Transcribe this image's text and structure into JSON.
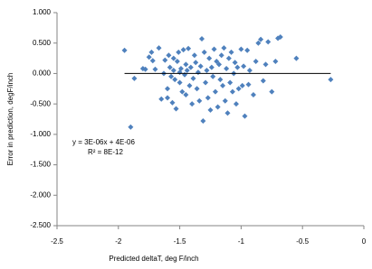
{
  "chart_data": {
    "type": "scatter",
    "x_label": "Predicted deltaT, deg F/inch",
    "y_label": "Error in prediction, degF/inch",
    "color": "#4f81bd",
    "x": [
      -1.95,
      -1.9,
      -1.87,
      -1.8,
      -1.78,
      -1.75,
      -1.73,
      -1.72,
      -1.7,
      -1.67,
      -1.65,
      -1.63,
      -1.62,
      -1.6,
      -1.6,
      -1.59,
      -1.58,
      -1.57,
      -1.56,
      -1.55,
      -1.55,
      -1.54,
      -1.53,
      -1.52,
      -1.51,
      -1.5,
      -1.5,
      -1.49,
      -1.48,
      -1.47,
      -1.46,
      -1.45,
      -1.45,
      -1.44,
      -1.43,
      -1.42,
      -1.41,
      -1.4,
      -1.39,
      -1.38,
      -1.37,
      -1.36,
      -1.35,
      -1.34,
      -1.33,
      -1.32,
      -1.31,
      -1.3,
      -1.29,
      -1.28,
      -1.27,
      -1.26,
      -1.25,
      -1.24,
      -1.23,
      -1.22,
      -1.21,
      -1.2,
      -1.19,
      -1.18,
      -1.17,
      -1.16,
      -1.15,
      -1.14,
      -1.13,
      -1.12,
      -1.11,
      -1.1,
      -1.09,
      -1.08,
      -1.07,
      -1.06,
      -1.05,
      -1.04,
      -1.03,
      -1.02,
      -1.0,
      -0.99,
      -0.98,
      -0.97,
      -0.95,
      -0.94,
      -0.93,
      -0.9,
      -0.88,
      -0.86,
      -0.84,
      -0.82,
      -0.8,
      -0.78,
      -0.75,
      -0.72,
      -0.7,
      -0.68,
      -0.55,
      -0.27
    ],
    "values": [
      0.38,
      -0.88,
      -0.08,
      0.08,
      0.07,
      0.27,
      0.35,
      0.21,
      0.07,
      0.42,
      -0.42,
      0.0,
      0.22,
      -0.25,
      -0.4,
      0.3,
      0.1,
      -0.05,
      -0.48,
      0.25,
      0.05,
      -0.1,
      -0.58,
      0.2,
      0.35,
      -0.15,
      0.02,
      0.08,
      -0.3,
      0.39,
      -0.02,
      0.15,
      -0.35,
      0.05,
      0.41,
      -0.2,
      0.1,
      -0.5,
      -0.08,
      0.3,
      0.18,
      -0.25,
      0.02,
      -0.45,
      0.12,
      0.57,
      -0.78,
      0.35,
      -0.15,
      0.05,
      -0.4,
      0.25,
      -0.6,
      0.1,
      -0.05,
      0.4,
      -0.3,
      0.2,
      -0.55,
      0.15,
      -0.1,
      0.3,
      -0.2,
      0.42,
      -0.45,
      0.08,
      -0.65,
      0.25,
      -0.15,
      0.35,
      -0.3,
      0.0,
      0.18,
      -0.5,
      0.1,
      -0.25,
      0.4,
      -0.2,
      0.12,
      -0.7,
      0.38,
      -0.18,
      0.05,
      -0.35,
      0.2,
      0.5,
      0.56,
      -0.12,
      0.15,
      0.52,
      -0.3,
      0.2,
      0.58,
      0.6,
      0.25,
      -0.1
    ],
    "trendline": {
      "equation": "y = 3E-06x + 4E-06",
      "r_squared": "R² = 8E-12",
      "x": [
        -1.95,
        -0.27
      ],
      "y": [
        0,
        0
      ]
    },
    "xlim": [
      -2.5,
      0
    ],
    "xticks": [
      -2.5,
      -2,
      -1.5,
      -1,
      -0.5,
      0
    ],
    "ylim": [
      -2.5,
      1
    ],
    "yticks": [
      {
        "value": -2.5,
        "label": "-2.500"
      },
      {
        "value": -2,
        "label": "-2.000"
      },
      {
        "value": -1.5,
        "label": "-1.500"
      },
      {
        "value": -1,
        "label": "-1.000"
      },
      {
        "value": -0.5,
        "label": "-0.500"
      },
      {
        "value": 0,
        "label": "0.000"
      },
      {
        "value": 0.5,
        "label": "0.500"
      },
      {
        "value": 1,
        "label": "1.000"
      }
    ],
    "grid": false
  }
}
